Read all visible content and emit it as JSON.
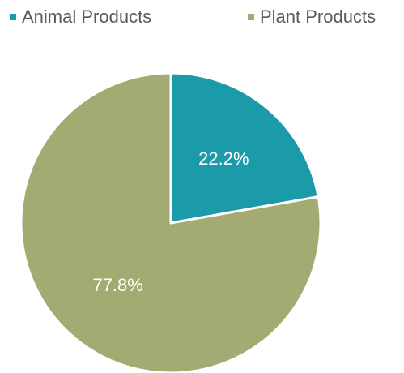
{
  "chart_data": {
    "type": "pie",
    "title": "",
    "categories": [
      "Animal Products",
      "Plant Products"
    ],
    "values": [
      22.2,
      77.8
    ],
    "labels": [
      "22.2%",
      "77.8%"
    ],
    "colors": [
      "#1b9aaa",
      "#a3ab72"
    ],
    "label_color": "#ffffff",
    "legend": {
      "placement": "top"
    }
  }
}
